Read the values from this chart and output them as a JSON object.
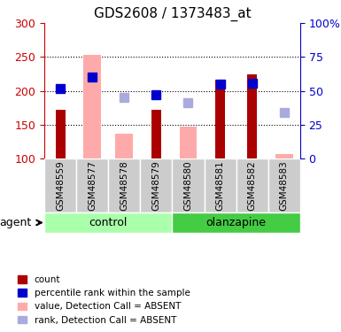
{
  "title": "GDS2608 / 1373483_at",
  "samples": [
    "GSM48559",
    "GSM48577",
    "GSM48578",
    "GSM48579",
    "GSM48580",
    "GSM48581",
    "GSM48582",
    "GSM48583"
  ],
  "red_bars": [
    172,
    null,
    null,
    172,
    null,
    217,
    225,
    null
  ],
  "pink_bars": [
    null,
    253,
    137,
    null,
    147,
    null,
    null,
    107
  ],
  "blue_squares": [
    204,
    221,
    null,
    194,
    null,
    210,
    212,
    null
  ],
  "lavender_squares": [
    null,
    null,
    190,
    null,
    183,
    null,
    null,
    168
  ],
  "ylim_left": [
    100,
    300
  ],
  "ylim_right": [
    0,
    100
  ],
  "yticks_left": [
    100,
    150,
    200,
    250,
    300
  ],
  "yticks_right": [
    0,
    25,
    50,
    75,
    100
  ],
  "ytick_labels_right": [
    "0",
    "25",
    "50",
    "75",
    "100%"
  ],
  "left_axis_color": "#cc0000",
  "right_axis_color": "#0000cc",
  "red_color": "#aa0000",
  "pink_color": "#ffaaaa",
  "blue_color": "#0000cc",
  "lavender_color": "#aaaadd",
  "control_color": "#aaffaa",
  "olanzapine_color": "#44cc44",
  "agent_label": "agent",
  "legend_items": [
    {
      "color": "#aa0000",
      "label": "count"
    },
    {
      "color": "#0000cc",
      "label": "percentile rank within the sample"
    },
    {
      "color": "#ffaaaa",
      "label": "value, Detection Call = ABSENT"
    },
    {
      "color": "#aaaadd",
      "label": "rank, Detection Call = ABSENT"
    }
  ]
}
